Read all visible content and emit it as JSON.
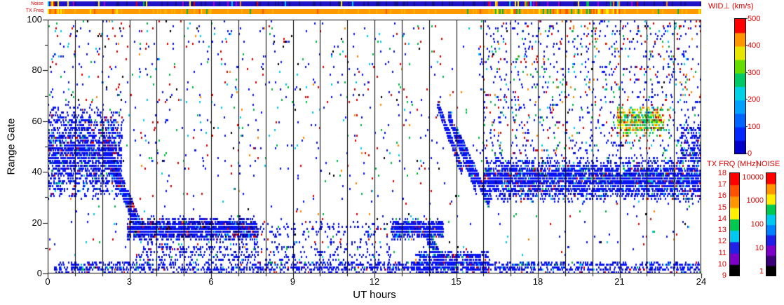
{
  "strip": {
    "noise_label": "Noise",
    "tx_label": "TX Freq",
    "noise_strip": {
      "base": "#2012c8",
      "dark_variant": "#141086",
      "fleck_colors": [
        "#00b944",
        "#ff8800",
        "#dd0000",
        "#00c8f0",
        "#ffee00",
        "#aa00cc"
      ]
    },
    "tx_strip": {
      "base": "#ff9900",
      "dark_variant": "#ffb300",
      "fleck_colors": [
        "#ffee00",
        "#00b944",
        "#ff5500"
      ]
    }
  },
  "chart_data": {
    "type": "scatter",
    "title": "",
    "xlabel": "UT hours",
    "ylabel": "Range Gate",
    "xlim": [
      0,
      24
    ],
    "ylim": [
      0,
      100
    ],
    "x_ticks": [
      0,
      3,
      6,
      9,
      12,
      15,
      18,
      21,
      24
    ],
    "y_ticks": [
      0,
      20,
      40,
      60,
      80,
      100
    ],
    "hour_separator_lines": true,
    "grid": false,
    "point_size": [
      2,
      3
    ],
    "seed": 1337,
    "colorbars": [
      {
        "id": "wid",
        "title": "WID⊥ (km/s)",
        "ticks": [
          0,
          100,
          200,
          300,
          400,
          500
        ],
        "range": [
          0,
          500
        ],
        "colors_bottom_to_top": [
          "#0000c8",
          "#0028ff",
          "#0064ff",
          "#00a0ff",
          "#00d2e6",
          "#00c864",
          "#64dc00",
          "#e6e600",
          "#ff9600",
          "#ff0000"
        ]
      },
      {
        "id": "txfrq",
        "title": "TX FRQ (MHz)",
        "ticks": [
          9,
          10,
          11,
          12,
          13,
          14,
          15,
          16,
          17,
          18
        ],
        "range": [
          9,
          18
        ],
        "colors_bottom_to_top": [
          "#000000",
          "#7d00c8",
          "#2222e6",
          "#00c8f0",
          "#00c850",
          "#ffee00",
          "#ff9600",
          "#ff5000",
          "#ff0000"
        ]
      },
      {
        "id": "noise",
        "title": "NOISE",
        "ticks": [
          1,
          10,
          100,
          1000,
          10000
        ],
        "range_log10": [
          0,
          5
        ],
        "colors_bottom_to_top": [
          "#000000",
          "#3c0078",
          "#7d00c8",
          "#1e1ee6",
          "#0082ff",
          "#00c8f0",
          "#00c850",
          "#ffee00",
          "#ff9600",
          "#ff0000"
        ]
      }
    ],
    "palettes": {
      "mostlyBlue": [
        [
          "#0814f3",
          0.84
        ],
        [
          "#0000a0",
          0.06
        ],
        [
          "#00c8f0",
          0.04
        ],
        [
          "#dd0000",
          0.03
        ],
        [
          "#00b944",
          0.03
        ]
      ],
      "blueDark": [
        [
          "#0814f3",
          0.74
        ],
        [
          "#000090",
          0.14
        ],
        [
          "#00c8f0",
          0.04
        ],
        [
          "#000000",
          0.03
        ],
        [
          "#dd0000",
          0.05
        ]
      ],
      "mixedBlue": [
        [
          "#0814f3",
          0.6
        ],
        [
          "#dd0000",
          0.14
        ],
        [
          "#00b944",
          0.1
        ],
        [
          "#00c8f0",
          0.1
        ],
        [
          "#ff8800",
          0.06
        ]
      ],
      "rainbowWarm": [
        [
          "#00c850",
          0.34
        ],
        [
          "#aaee00",
          0.1
        ],
        [
          "#ffee00",
          0.18
        ],
        [
          "#ff8800",
          0.18
        ],
        [
          "#dd0000",
          0.12
        ],
        [
          "#00c8f0",
          0.08
        ]
      ],
      "noiseMix": [
        [
          "#0814f3",
          0.44
        ],
        [
          "#dd0000",
          0.2
        ],
        [
          "#00b944",
          0.12
        ],
        [
          "#00c8f0",
          0.12
        ],
        [
          "#ff8800",
          0.06
        ],
        [
          "#000000",
          0.06
        ]
      ]
    },
    "features": [
      {
        "name": "dawn-dense-echoes",
        "t": [
          0.0,
          2.7
        ],
        "gates": [
          28,
          68
        ],
        "count": 1800,
        "palette": "mostlyBlue",
        "clump": true
      },
      {
        "name": "dawn-upper-sparse",
        "t": [
          0.0,
          2.8
        ],
        "gates": [
          68,
          100
        ],
        "count": 90,
        "palette": "noiseMix"
      },
      {
        "name": "descending-trace",
        "type": "diagonal",
        "t": [
          2.0,
          3.4
        ],
        "gateStart": 52,
        "gateEnd": 16,
        "thickness": 8,
        "count": 800,
        "palette": "blueDark"
      },
      {
        "name": "morning-low-band",
        "t": [
          2.9,
          7.7
        ],
        "gates": [
          12,
          22
        ],
        "count": 1700,
        "palette": "blueDark",
        "clump": true
      },
      {
        "name": "morning-low-sparse",
        "t": [
          3.2,
          7.7
        ],
        "gates": [
          5,
          11
        ],
        "count": 240,
        "palette": "mostlyBlue"
      },
      {
        "name": "ground-scatter-band",
        "t": [
          0.2,
          24.0
        ],
        "gates": [
          0,
          4
        ],
        "count": 1500,
        "palette": "mostlyBlue"
      },
      {
        "name": "daytime-low-sparse",
        "t": [
          7.5,
          12.7
        ],
        "gates": [
          4,
          20
        ],
        "count": 280,
        "palette": "mostlyBlue"
      },
      {
        "name": "daytime-upper-sparse",
        "t": [
          3.0,
          14.5
        ],
        "gates": [
          40,
          100
        ],
        "count": 260,
        "palette": "noiseMix"
      },
      {
        "name": "midday-blob",
        "t": [
          12.6,
          14.5
        ],
        "gates": [
          13,
          21
        ],
        "count": 650,
        "palette": "mostlyBlue",
        "clump": true
      },
      {
        "name": "midday-connector",
        "type": "diagonal",
        "t": [
          13.9,
          14.5
        ],
        "gateStart": 14,
        "gateEnd": 4,
        "thickness": 5,
        "count": 200,
        "palette": "mostlyBlue"
      },
      {
        "name": "low-band-afternoon",
        "t": [
          13.5,
          16.2
        ],
        "gates": [
          0,
          8
        ],
        "count": 550,
        "palette": "mostlyBlue"
      },
      {
        "name": "afternoon-streak-1",
        "type": "diagonal",
        "t": [
          14.3,
          15.2
        ],
        "gateStart": 66,
        "gateEnd": 40,
        "thickness": 4,
        "count": 330,
        "palette": "mostlyBlue"
      },
      {
        "name": "afternoon-streak-2",
        "type": "diagonal",
        "t": [
          14.7,
          15.7
        ],
        "gateStart": 62,
        "gateEnd": 33,
        "thickness": 4,
        "count": 350,
        "palette": "mostlyBlue"
      },
      {
        "name": "afternoon-streak-3",
        "type": "diagonal",
        "t": [
          15.0,
          16.2
        ],
        "gateStart": 55,
        "gateEnd": 27,
        "thickness": 5,
        "count": 380,
        "palette": "mostlyBlue"
      },
      {
        "name": "evening-band",
        "t": [
          16.0,
          24.0
        ],
        "gates": [
          27,
          46
        ],
        "count": 3400,
        "palette": "mostlyBlue",
        "clump": true
      },
      {
        "name": "evening-upper-scatter",
        "t": [
          15.8,
          24.0
        ],
        "gates": [
          46,
          100
        ],
        "count": 950,
        "palette": "mixedBlue"
      },
      {
        "name": "evening-colorful-patch",
        "t": [
          20.9,
          22.6
        ],
        "gates": [
          53,
          66
        ],
        "count": 480,
        "palette": "rainbowWarm",
        "clump": true
      },
      {
        "name": "late-upper-cluster",
        "t": [
          23.2,
          24.0
        ],
        "gates": [
          44,
          58
        ],
        "count": 200,
        "palette": "mostlyBlue"
      },
      {
        "name": "sparse-background-noise",
        "t": [
          0.0,
          24.0
        ],
        "gates": [
          0,
          100
        ],
        "count": 750,
        "palette": "noiseMix"
      }
    ]
  }
}
